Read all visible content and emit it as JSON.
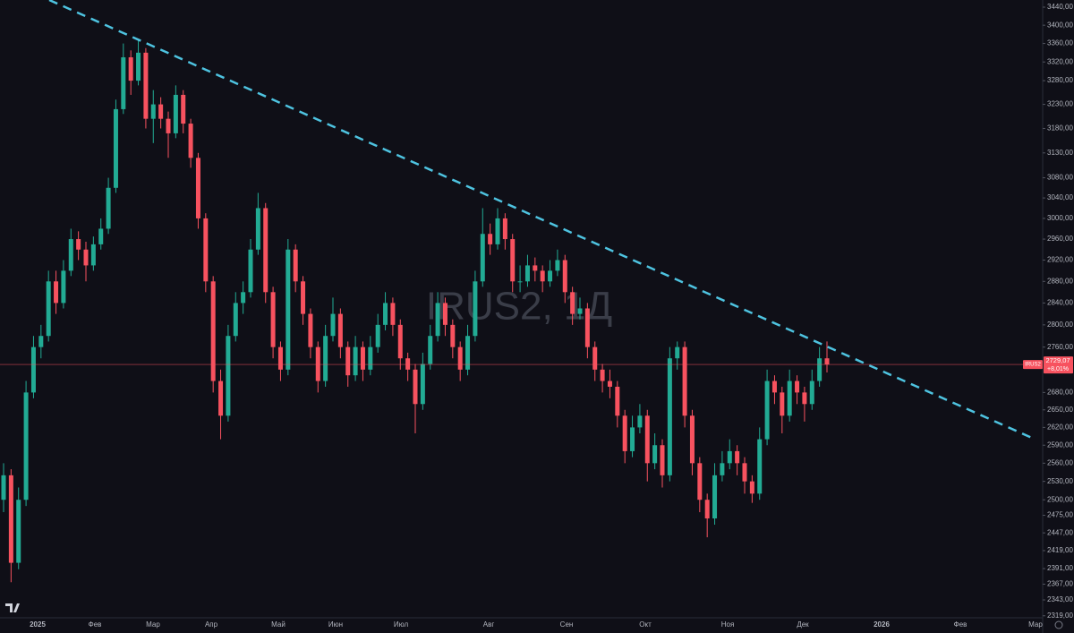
{
  "chart_data": {
    "type": "candlestick",
    "watermark": "IRUS2, 1Д",
    "log_scale": true,
    "up_color": "#22ab94",
    "down_color": "#f7525f",
    "ylim": [
      2316,
      3456
    ],
    "yticks": [
      {
        "value": 3440,
        "label": "3440,00"
      },
      {
        "value": 3400,
        "label": "3400,00"
      },
      {
        "value": 3360,
        "label": "3360,00"
      },
      {
        "value": 3320,
        "label": "3320,00"
      },
      {
        "value": 3280,
        "label": "3280,00"
      },
      {
        "value": 3230,
        "label": "3230,00"
      },
      {
        "value": 3180,
        "label": "3180,00"
      },
      {
        "value": 3130,
        "label": "3130,00"
      },
      {
        "value": 3080,
        "label": "3080,00"
      },
      {
        "value": 3040,
        "label": "3040,00"
      },
      {
        "value": 3000,
        "label": "3000,00"
      },
      {
        "value": 2960,
        "label": "2960,00"
      },
      {
        "value": 2920,
        "label": "2920,00"
      },
      {
        "value": 2880,
        "label": "2880,00"
      },
      {
        "value": 2840,
        "label": "2840,00"
      },
      {
        "value": 2800,
        "label": "2800,00"
      },
      {
        "value": 2760,
        "label": "2760,00"
      },
      {
        "value": 2680,
        "label": "2680,00"
      },
      {
        "value": 2650,
        "label": "2650,00"
      },
      {
        "value": 2620,
        "label": "2620,00"
      },
      {
        "value": 2590,
        "label": "2590,00"
      },
      {
        "value": 2560,
        "label": "2560,00"
      },
      {
        "value": 2530,
        "label": "2530,00"
      },
      {
        "value": 2500,
        "label": "2500,00"
      },
      {
        "value": 2475,
        "label": "2475,00"
      },
      {
        "value": 2447,
        "label": "2447,00"
      },
      {
        "value": 2419,
        "label": "2419,00"
      },
      {
        "value": 2391,
        "label": "2391,00"
      },
      {
        "value": 2367,
        "label": "2367,00"
      },
      {
        "value": 2343,
        "label": "2343,00"
      },
      {
        "value": 2319,
        "label": "2319,00"
      }
    ],
    "xtick_labels": [
      "2025",
      "Фев",
      "Мар",
      "Апр",
      "Май",
      "Июн",
      "Июл",
      "Авг",
      "Сен",
      "Окт",
      "Ноя",
      "Дек",
      "2026",
      "Фев",
      "Мар"
    ],
    "price_tag": {
      "ticker": "IRUS2",
      "price": "2729,07",
      "change": "+8,01%"
    },
    "trendline": {
      "color": "#4ec3e0",
      "values": [
        3456,
        2601
      ]
    },
    "ohlc": [
      [
        2500,
        2560,
        2480,
        2540
      ],
      [
        2540,
        2550,
        2370,
        2400
      ],
      [
        2400,
        2520,
        2390,
        2500
      ],
      [
        2500,
        2700,
        2490,
        2680
      ],
      [
        2680,
        2780,
        2670,
        2760
      ],
      [
        2760,
        2800,
        2740,
        2780
      ],
      [
        2780,
        2900,
        2770,
        2880
      ],
      [
        2880,
        2900,
        2820,
        2840
      ],
      [
        2840,
        2920,
        2830,
        2900
      ],
      [
        2900,
        2980,
        2890,
        2960
      ],
      [
        2960,
        2975,
        2920,
        2940
      ],
      [
        2940,
        2955,
        2880,
        2910
      ],
      [
        2910,
        2965,
        2900,
        2950
      ],
      [
        2950,
        3000,
        2940,
        2980
      ],
      [
        2980,
        3080,
        2970,
        3060
      ],
      [
        3060,
        3240,
        3050,
        3220
      ],
      [
        3220,
        3360,
        3210,
        3330
      ],
      [
        3330,
        3345,
        3250,
        3280
      ],
      [
        3280,
        3370,
        3270,
        3340
      ],
      [
        3340,
        3350,
        3180,
        3200
      ],
      [
        3200,
        3260,
        3150,
        3230
      ],
      [
        3230,
        3245,
        3180,
        3200
      ],
      [
        3200,
        3215,
        3120,
        3170
      ],
      [
        3170,
        3270,
        3160,
        3250
      ],
      [
        3250,
        3260,
        3170,
        3190
      ],
      [
        3190,
        3200,
        3100,
        3120
      ],
      [
        3120,
        3130,
        2980,
        3000
      ],
      [
        3000,
        3010,
        2860,
        2880
      ],
      [
        2880,
        2890,
        2680,
        2700
      ],
      [
        2700,
        2720,
        2600,
        2640
      ],
      [
        2640,
        2800,
        2630,
        2780
      ],
      [
        2780,
        2860,
        2770,
        2840
      ],
      [
        2840,
        2880,
        2820,
        2860
      ],
      [
        2860,
        2960,
        2850,
        2940
      ],
      [
        2940,
        3050,
        2930,
        3020
      ],
      [
        3020,
        3030,
        2840,
        2860
      ],
      [
        2860,
        2870,
        2740,
        2760
      ],
      [
        2760,
        2770,
        2700,
        2720
      ],
      [
        2720,
        2960,
        2710,
        2940
      ],
      [
        2940,
        2950,
        2860,
        2880
      ],
      [
        2880,
        2890,
        2800,
        2820
      ],
      [
        2820,
        2830,
        2740,
        2760
      ],
      [
        2760,
        2770,
        2680,
        2700
      ],
      [
        2700,
        2800,
        2690,
        2780
      ],
      [
        2780,
        2850,
        2770,
        2820
      ],
      [
        2820,
        2830,
        2740,
        2760
      ],
      [
        2760,
        2770,
        2690,
        2710
      ],
      [
        2710,
        2780,
        2700,
        2760
      ],
      [
        2760,
        2770,
        2700,
        2720
      ],
      [
        2720,
        2780,
        2710,
        2760
      ],
      [
        2760,
        2820,
        2750,
        2800
      ],
      [
        2800,
        2860,
        2790,
        2840
      ],
      [
        2840,
        2850,
        2780,
        2800
      ],
      [
        2800,
        2810,
        2720,
        2740
      ],
      [
        2740,
        2750,
        2700,
        2720
      ],
      [
        2720,
        2730,
        2610,
        2660
      ],
      [
        2660,
        2750,
        2650,
        2730
      ],
      [
        2730,
        2800,
        2720,
        2780
      ],
      [
        2780,
        2860,
        2770,
        2840
      ],
      [
        2840,
        2850,
        2780,
        2800
      ],
      [
        2800,
        2810,
        2740,
        2760
      ],
      [
        2760,
        2770,
        2700,
        2720
      ],
      [
        2720,
        2800,
        2710,
        2780
      ],
      [
        2780,
        2900,
        2770,
        2880
      ],
      [
        2880,
        3020,
        2870,
        2970
      ],
      [
        2970,
        2990,
        2930,
        2950
      ],
      [
        2950,
        3020,
        2940,
        3000
      ],
      [
        3000,
        3010,
        2940,
        2960
      ],
      [
        2960,
        2970,
        2860,
        2880
      ],
      [
        2880,
        2910,
        2860,
        2880
      ],
      [
        2880,
        2930,
        2870,
        2910
      ],
      [
        2910,
        2925,
        2880,
        2900
      ],
      [
        2900,
        2910,
        2860,
        2880
      ],
      [
        2880,
        2920,
        2870,
        2900
      ],
      [
        2900,
        2940,
        2890,
        2920
      ],
      [
        2920,
        2930,
        2840,
        2860
      ],
      [
        2860,
        2870,
        2800,
        2820
      ],
      [
        2820,
        2850,
        2810,
        2830
      ],
      [
        2830,
        2840,
        2740,
        2760
      ],
      [
        2760,
        2770,
        2700,
        2720
      ],
      [
        2720,
        2730,
        2680,
        2700
      ],
      [
        2700,
        2720,
        2670,
        2690
      ],
      [
        2690,
        2700,
        2620,
        2640
      ],
      [
        2640,
        2650,
        2560,
        2580
      ],
      [
        2580,
        2640,
        2570,
        2620
      ],
      [
        2620,
        2660,
        2610,
        2640
      ],
      [
        2640,
        2650,
        2530,
        2560
      ],
      [
        2560,
        2610,
        2550,
        2590
      ],
      [
        2590,
        2600,
        2520,
        2540
      ],
      [
        2540,
        2760,
        2530,
        2740
      ],
      [
        2740,
        2770,
        2720,
        2760
      ],
      [
        2760,
        2770,
        2620,
        2640
      ],
      [
        2640,
        2650,
        2540,
        2560
      ],
      [
        2560,
        2570,
        2480,
        2500
      ],
      [
        2500,
        2510,
        2440,
        2470
      ],
      [
        2470,
        2560,
        2460,
        2540
      ],
      [
        2540,
        2580,
        2530,
        2560
      ],
      [
        2560,
        2600,
        2550,
        2580
      ],
      [
        2580,
        2590,
        2540,
        2560
      ],
      [
        2560,
        2570,
        2510,
        2530
      ],
      [
        2530,
        2540,
        2495,
        2510
      ],
      [
        2510,
        2620,
        2500,
        2600
      ],
      [
        2600,
        2720,
        2590,
        2700
      ],
      [
        2700,
        2710,
        2660,
        2680
      ],
      [
        2680,
        2690,
        2610,
        2640
      ],
      [
        2640,
        2720,
        2630,
        2700
      ],
      [
        2700,
        2710,
        2660,
        2680
      ],
      [
        2680,
        2690,
        2630,
        2660
      ],
      [
        2660,
        2720,
        2650,
        2700
      ],
      [
        2700,
        2760,
        2690,
        2740
      ],
      [
        2740,
        2770,
        2715,
        2729.07
      ]
    ]
  }
}
